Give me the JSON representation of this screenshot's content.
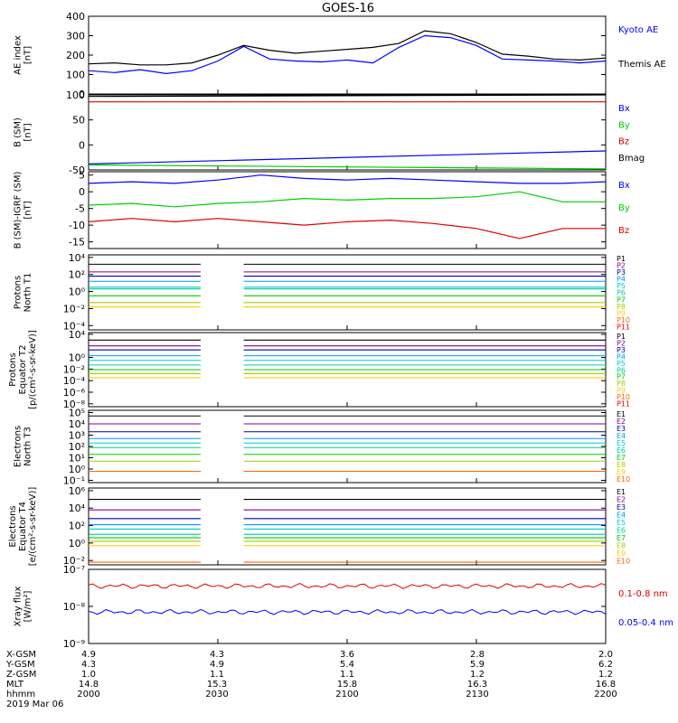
{
  "title": "GOES-16",
  "colors": {
    "black": "#000000",
    "blue": "#0000ff",
    "green": "#00cc00",
    "red": "#dd0000",
    "chan": [
      "#000000",
      "#880088",
      "#0000aa",
      "#0099ff",
      "#00cccc",
      "#00cc99",
      "#00cc00",
      "#aacc00",
      "#ffcc00",
      "#ff6600",
      "#dd0000"
    ]
  },
  "x_ticks": [
    "2000",
    "2030",
    "2100",
    "2130",
    "2200"
  ],
  "footer": {
    "rows": [
      {
        "label": "X-GSM",
        "values": [
          "4.9",
          "4.3",
          "3.6",
          "2.8",
          "2.0"
        ]
      },
      {
        "label": "Y-GSM",
        "values": [
          "4.3",
          "4.9",
          "5.4",
          "5.9",
          "6.2"
        ]
      },
      {
        "label": "Z-GSM",
        "values": [
          "1.0",
          "1.1",
          "1.1",
          "1.2",
          "1.2"
        ]
      },
      {
        "label": "MLT",
        "values": [
          "14.8",
          "15.3",
          "15.8",
          "16.3",
          "16.8"
        ]
      },
      {
        "label": "hhmm",
        "values": [
          "2000",
          "2030",
          "2100",
          "2130",
          "2200"
        ]
      }
    ],
    "date": "2019 Mar 06"
  },
  "chart_data": [
    {
      "panel": "ae",
      "type": "line",
      "ylabel": [
        "AE index",
        "[nT]"
      ],
      "ylim": [
        0,
        400
      ],
      "yticks": [
        "0",
        "100",
        "200",
        "300",
        "400"
      ],
      "x": [
        0,
        6,
        12,
        18,
        24,
        30,
        36,
        42,
        48,
        54,
        60,
        66,
        72,
        78,
        84,
        90,
        96,
        102,
        108,
        114,
        120
      ],
      "series": [
        {
          "name": "Kyoto AE",
          "color": "#0000ff",
          "values": [
            120,
            110,
            125,
            105,
            120,
            170,
            245,
            180,
            170,
            165,
            175,
            160,
            240,
            300,
            290,
            250,
            180,
            175,
            170,
            160,
            170
          ]
        },
        {
          "name": "Themis AE",
          "color": "#000000",
          "values": [
            155,
            160,
            150,
            150,
            160,
            200,
            250,
            225,
            210,
            220,
            230,
            240,
            260,
            325,
            310,
            265,
            205,
            195,
            180,
            175,
            185
          ]
        }
      ]
    },
    {
      "panel": "b_sm",
      "type": "line",
      "ylabel": [
        "B (SM)",
        "[nT]"
      ],
      "ylim": [
        -50,
        100
      ],
      "yticks": [
        "-50",
        "0",
        "50",
        "100"
      ],
      "x": [
        0,
        120
      ],
      "series": [
        {
          "name": "Bx",
          "color": "#0000ff",
          "values": [
            -38,
            -12
          ]
        },
        {
          "name": "By",
          "color": "#00cc00",
          "values": [
            -40,
            -48
          ]
        },
        {
          "name": "Bz",
          "color": "#dd0000",
          "values": [
            86,
            86
          ]
        },
        {
          "name": "Bmag",
          "color": "#000000",
          "values": [
            97,
            100
          ]
        }
      ]
    },
    {
      "panel": "b_igrf",
      "type": "line",
      "ylabel": [
        "B (SM)-IGRF (SM)",
        "[nT]"
      ],
      "ylim": [
        -17,
        6
      ],
      "yticks": [
        "-15",
        "-10",
        "-5",
        "0",
        "5"
      ],
      "x": [
        0,
        10,
        20,
        30,
        40,
        50,
        60,
        70,
        80,
        90,
        100,
        110,
        120
      ],
      "series": [
        {
          "name": "Bx",
          "color": "#0000ff",
          "values": [
            2.5,
            3,
            2.5,
            3.5,
            5,
            4,
            3.5,
            4,
            3.5,
            3,
            2.5,
            2.5,
            3
          ]
        },
        {
          "name": "By",
          "color": "#00cc00",
          "values": [
            -4,
            -3.5,
            -4.5,
            -3.5,
            -3,
            -2,
            -2.5,
            -2,
            -2,
            -1.5,
            0,
            -3,
            -3
          ]
        },
        {
          "name": "Bz",
          "color": "#dd0000",
          "values": [
            -9,
            -8,
            -9,
            -8,
            -9,
            -10,
            -9,
            -8.5,
            -9.5,
            -11,
            -14,
            -11,
            -11
          ]
        }
      ]
    },
    {
      "panel": "p_t1",
      "type": "line",
      "ylabel": [
        "Protons",
        "North T1"
      ],
      "log": true,
      "ylim": [
        -4.5,
        4.3
      ],
      "yticks": [
        "10⁴",
        "10²",
        "10⁰",
        "10⁻²",
        "10⁻⁴"
      ],
      "tick_exp": [
        4,
        2,
        0,
        -2,
        -4
      ],
      "gap": [
        26,
        36
      ],
      "channels": [
        "P1",
        "P2",
        "P3",
        "P4",
        "P5",
        "P6",
        "P7",
        "P8",
        "P9",
        "P10",
        "P11"
      ],
      "levels": [
        3.2,
        2.3,
        1.8,
        1.2,
        0.5,
        0.3,
        -0.5,
        -1.3,
        -1.8,
        -4.5,
        -4.5
      ]
    },
    {
      "panel": "p_t2",
      "type": "line",
      "ylabel": [
        "Protons",
        "Equator T2",
        "[p/(cm²-s-sr-keV)]"
      ],
      "log": true,
      "ylim": [
        -8.5,
        4.3
      ],
      "yticks": [
        "10⁴",
        "10⁰",
        "10⁻²",
        "10⁻⁴",
        "10⁻⁶",
        "10⁻⁸"
      ],
      "tick_exp": [
        4,
        0,
        -2,
        -4,
        -6,
        -8
      ],
      "gap": [
        26,
        36
      ],
      "channels": [
        "P1",
        "P2",
        "P3",
        "P4",
        "P5",
        "P6",
        "P7",
        "P8",
        "P9",
        "P10",
        "P11"
      ],
      "levels": [
        3.0,
        2.0,
        1.3,
        0.3,
        -0.5,
        -1.3,
        -2.1,
        -2.8,
        -3.5,
        -9,
        -9
      ]
    },
    {
      "panel": "e_t3",
      "type": "line",
      "ylabel": [
        "Electrons",
        "North T3"
      ],
      "log": true,
      "ylim": [
        -1.2,
        5.2
      ],
      "yticks": [
        "10⁵",
        "10⁴",
        "10³",
        "10²",
        "10¹",
        "10⁰",
        "10⁻¹"
      ],
      "tick_exp": [
        5,
        4,
        3,
        2,
        1,
        0,
        -1
      ],
      "gap": [
        26,
        36
      ],
      "channels": [
        "E1",
        "E2",
        "E3",
        "E4",
        "E5",
        "E6",
        "E7",
        "E8",
        "E9",
        "E10"
      ],
      "levels": [
        4.7,
        4.0,
        3.3,
        2.7,
        2.3,
        1.9,
        1.3,
        0.7,
        -0.2,
        -0.2
      ]
    },
    {
      "panel": "e_t4",
      "type": "line",
      "ylabel": [
        "Electrons",
        "Equator T4",
        "[e/(cm²-s-sr-keV)]"
      ],
      "log": true,
      "ylim": [
        -2.5,
        6.3
      ],
      "yticks": [
        "10⁶",
        "10⁴",
        "10²",
        "10⁰",
        "10⁻²"
      ],
      "tick_exp": [
        6,
        4,
        2,
        0,
        -2
      ],
      "gap": [
        26,
        36
      ],
      "channels": [
        "E1",
        "E2",
        "E3",
        "E4",
        "E5",
        "E6",
        "E7",
        "E8",
        "E9",
        "E10"
      ],
      "levels": [
        5.0,
        3.8,
        2.8,
        2.1,
        1.6,
        1.0,
        0.6,
        0.2,
        -0.3,
        -2.2
      ]
    },
    {
      "panel": "xray",
      "type": "line",
      "ylabel": [
        "Xray flux",
        "[W/m²]"
      ],
      "log": true,
      "ylim": [
        -9,
        -7
      ],
      "yticks": [
        "10⁻⁷",
        "10⁻⁸",
        "10⁻⁹"
      ],
      "tick_exp": [
        -7,
        -8,
        -9
      ],
      "series": [
        {
          "name": "0.1-0.8 nm",
          "color": "#dd0000",
          "level": -7.45
        },
        {
          "name": "0.05-0.4 nm",
          "color": "#0000ff",
          "level": -8.15
        }
      ]
    }
  ]
}
